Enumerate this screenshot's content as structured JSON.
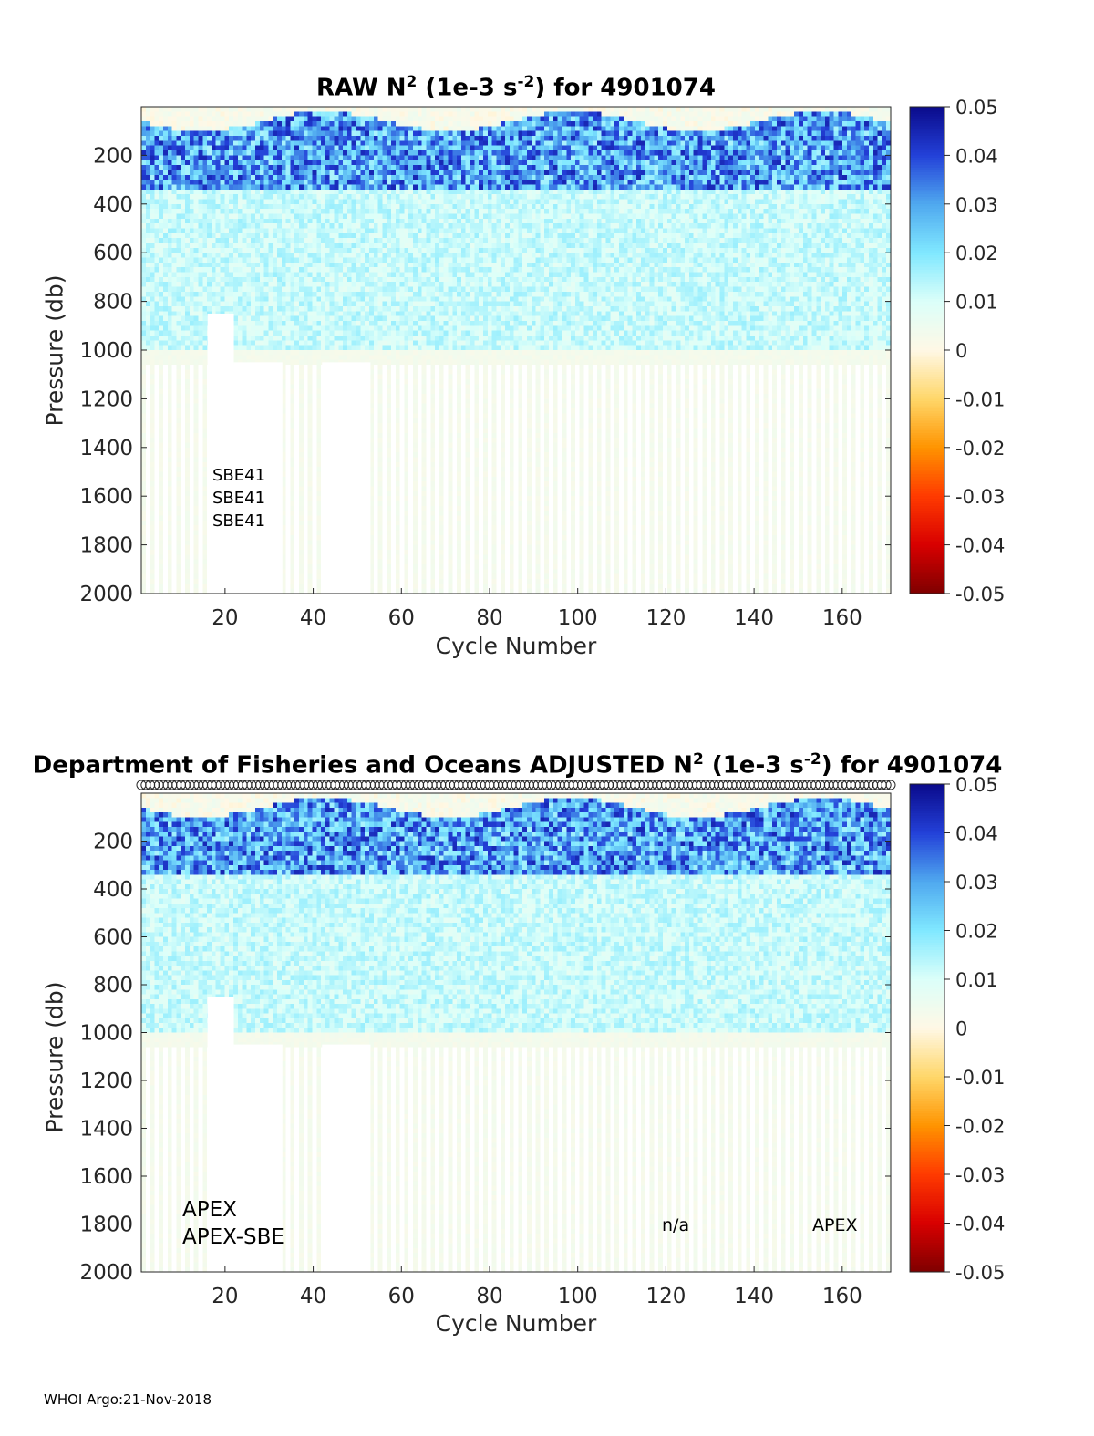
{
  "footer": "WHOI Argo:21-Nov-2018",
  "colorbar": {
    "ticks": [
      "0.05",
      "0.04",
      "0.03",
      "0.02",
      "0.01",
      "0",
      "-0.01",
      "-0.02",
      "-0.03",
      "-0.04",
      "-0.05"
    ],
    "range": [
      -0.05,
      0.05
    ]
  },
  "colormap_anchors": [
    "#7f0000",
    "#d80000",
    "#ff3a00",
    "#ff9400",
    "#ffd76a",
    "#fff8e6",
    "#dbfff9",
    "#80e8ff",
    "#4fa8ef",
    "#2340d8",
    "#0a0a8a"
  ],
  "chart_data": [
    {
      "type": "heatmap",
      "title": "RAW N",
      "title_sup1": "2",
      "title_mid": " (1e-3 s",
      "title_sup2": "-2",
      "title_end": ") for 4901074",
      "xlabel": "Cycle Number",
      "ylabel": "Pressure (db)",
      "xlim": [
        1,
        171
      ],
      "ylim": [
        2000,
        0
      ],
      "xticks": [
        "20",
        "40",
        "60",
        "80",
        "100",
        "120",
        "140",
        "160"
      ],
      "yticks": [
        "200",
        "400",
        "600",
        "800",
        "1000",
        "1200",
        "1400",
        "1600",
        "1800",
        "2000"
      ],
      "annotations": [
        "SBE41",
        "SBE41",
        "SBE41"
      ],
      "value_summary": {
        "0-100db": 0.002,
        "100-350db": 0.03,
        "350-1000db": 0.012,
        "1000-2000db": 0.003
      },
      "qc_markers": false
    },
    {
      "type": "heatmap",
      "title": "Department of Fisheries and Oceans  ADJUSTED N",
      "title_sup1": "2",
      "title_mid": " (1e-3 s",
      "title_sup2": "-2",
      "title_end": ") for 4901074",
      "xlabel": "Cycle Number",
      "ylabel": "Pressure (db)",
      "xlim": [
        1,
        171
      ],
      "ylim": [
        2000,
        0
      ],
      "xticks": [
        "20",
        "40",
        "60",
        "80",
        "100",
        "120",
        "140",
        "160"
      ],
      "yticks": [
        "200",
        "400",
        "600",
        "800",
        "1000",
        "1200",
        "1400",
        "1600",
        "1800",
        "2000"
      ],
      "annotations": [
        "APEX",
        "APEX-SBE",
        "n/a",
        "APEX"
      ],
      "value_summary": {
        "0-100db": 0.002,
        "100-350db": 0.03,
        "350-1000db": 0.012,
        "1000-2000db": 0.003
      },
      "qc_markers": true
    }
  ]
}
